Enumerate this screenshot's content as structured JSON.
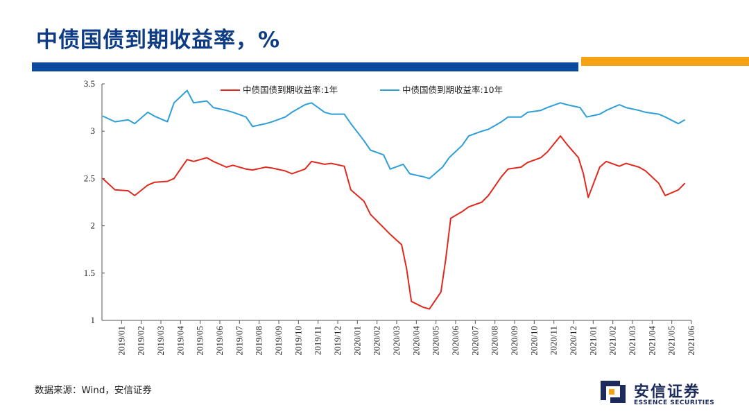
{
  "slide": {
    "title": "中债国债到期收益率，%",
    "source": "数据来源：Wind，安信证券"
  },
  "logo": {
    "cn_name": "安信证券",
    "en_name": "ESSENCE SECURITIES",
    "brand_color": "#1c2a5c",
    "accent_color": "#f5a314"
  },
  "colors": {
    "title": "#0d3c84",
    "bar_blue": "#0c4a9e",
    "bar_orange": "#f5a314"
  },
  "chart_data": {
    "type": "line",
    "ylim": [
      1,
      3.5
    ],
    "yticks": [
      "1",
      "1.5",
      "2",
      "2.5",
      "3",
      "3.5"
    ],
    "x_tick_labels": [
      "2019/01",
      "2019/02",
      "2019/03",
      "2019/04",
      "2019/05",
      "2019/06",
      "2019/07",
      "2019/08",
      "2019/09",
      "2019/10",
      "2019/11",
      "2019/12",
      "2020/01",
      "2020/02",
      "2020/03",
      "2020/04",
      "2020/05",
      "2020/06",
      "2020/07",
      "2020/08",
      "2020/09",
      "2020/10",
      "2020/11",
      "2020/12",
      "2021/01",
      "2021/02",
      "2021/03",
      "2021/04",
      "2021/05",
      "2021/06"
    ],
    "legend_position": "top-center",
    "grid": false,
    "series": [
      {
        "name": "中债国债到期收益率:1年",
        "color": "#e0281e",
        "points": [
          [
            "2019/01",
            2.5
          ],
          [
            "2019/01",
            2.38
          ],
          [
            "2019/02",
            2.37
          ],
          [
            "2019/02",
            2.32
          ],
          [
            "2019/03",
            2.43
          ],
          [
            "2019/03",
            2.46
          ],
          [
            "2019/04",
            2.47
          ],
          [
            "2019/04",
            2.5
          ],
          [
            "2019/05",
            2.7
          ],
          [
            "2019/05",
            2.68
          ],
          [
            "2019/06",
            2.72
          ],
          [
            "2019/06",
            2.68
          ],
          [
            "2019/07",
            2.62
          ],
          [
            "2019/07",
            2.64
          ],
          [
            "2019/08",
            2.6
          ],
          [
            "2019/08",
            2.59
          ],
          [
            "2019/09",
            2.62
          ],
          [
            "2019/09",
            2.61
          ],
          [
            "2019/10",
            2.58
          ],
          [
            "2019/10",
            2.55
          ],
          [
            "2019/11",
            2.6
          ],
          [
            "2019/11",
            2.68
          ],
          [
            "2019/12",
            2.65
          ],
          [
            "2019/12",
            2.66
          ],
          [
            "2020/01",
            2.63
          ],
          [
            "2020/01",
            2.38
          ],
          [
            "2020/02",
            2.26
          ],
          [
            "2020/02",
            2.12
          ],
          [
            "2020/03",
            1.98
          ],
          [
            "2020/03",
            1.91
          ],
          [
            "2020/04",
            1.8
          ],
          [
            "2020/04",
            1.55
          ],
          [
            "2020/04",
            1.2
          ],
          [
            "2020/05",
            1.14
          ],
          [
            "2020/05",
            1.12
          ],
          [
            "2020/06",
            1.3
          ],
          [
            "2020/06",
            1.65
          ],
          [
            "2020/06",
            2.08
          ],
          [
            "2020/07",
            2.15
          ],
          [
            "2020/07",
            2.2
          ],
          [
            "2020/08",
            2.25
          ],
          [
            "2020/08",
            2.32
          ],
          [
            "2020/09",
            2.52
          ],
          [
            "2020/09",
            2.6
          ],
          [
            "2020/10",
            2.62
          ],
          [
            "2020/10",
            2.67
          ],
          [
            "2020/11",
            2.72
          ],
          [
            "2020/11",
            2.78
          ],
          [
            "2020/12",
            2.95
          ],
          [
            "2020/12",
            2.86
          ],
          [
            "2021/01",
            2.72
          ],
          [
            "2021/01",
            2.55
          ],
          [
            "2021/01",
            2.3
          ],
          [
            "2021/02",
            2.62
          ],
          [
            "2021/02",
            2.68
          ],
          [
            "2021/03",
            2.63
          ],
          [
            "2021/03",
            2.66
          ],
          [
            "2021/04",
            2.62
          ],
          [
            "2021/04",
            2.58
          ],
          [
            "2021/05",
            2.45
          ],
          [
            "2021/05",
            2.32
          ],
          [
            "2021/06",
            2.38
          ],
          [
            "2021/06",
            2.45
          ]
        ]
      },
      {
        "name": "中债国债到期收益率:10年",
        "color": "#2d9ed6",
        "points": [
          [
            "2019/01",
            3.16
          ],
          [
            "2019/01",
            3.1
          ],
          [
            "2019/02",
            3.12
          ],
          [
            "2019/02",
            3.08
          ],
          [
            "2019/03",
            3.2
          ],
          [
            "2019/03",
            3.16
          ],
          [
            "2019/04",
            3.1
          ],
          [
            "2019/04",
            3.3
          ],
          [
            "2019/05",
            3.43
          ],
          [
            "2019/05",
            3.3
          ],
          [
            "2019/06",
            3.32
          ],
          [
            "2019/06",
            3.25
          ],
          [
            "2019/07",
            3.22
          ],
          [
            "2019/07",
            3.2
          ],
          [
            "2019/08",
            3.15
          ],
          [
            "2019/08",
            3.05
          ],
          [
            "2019/09",
            3.08
          ],
          [
            "2019/09",
            3.1
          ],
          [
            "2019/10",
            3.15
          ],
          [
            "2019/10",
            3.2
          ],
          [
            "2019/11",
            3.28
          ],
          [
            "2019/11",
            3.3
          ],
          [
            "2019/12",
            3.2
          ],
          [
            "2019/12",
            3.18
          ],
          [
            "2020/01",
            3.18
          ],
          [
            "2020/01",
            3.08
          ],
          [
            "2020/02",
            2.9
          ],
          [
            "2020/02",
            2.8
          ],
          [
            "2020/03",
            2.75
          ],
          [
            "2020/03",
            2.6
          ],
          [
            "2020/04",
            2.65
          ],
          [
            "2020/04",
            2.55
          ],
          [
            "2020/05",
            2.52
          ],
          [
            "2020/05",
            2.5
          ],
          [
            "2020/06",
            2.62
          ],
          [
            "2020/06",
            2.72
          ],
          [
            "2020/07",
            2.85
          ],
          [
            "2020/07",
            2.95
          ],
          [
            "2020/08",
            3.0
          ],
          [
            "2020/08",
            3.02
          ],
          [
            "2020/09",
            3.1
          ],
          [
            "2020/09",
            3.15
          ],
          [
            "2020/10",
            3.15
          ],
          [
            "2020/10",
            3.2
          ],
          [
            "2020/11",
            3.22
          ],
          [
            "2020/11",
            3.25
          ],
          [
            "2020/12",
            3.3
          ],
          [
            "2020/12",
            3.28
          ],
          [
            "2021/01",
            3.25
          ],
          [
            "2021/01",
            3.15
          ],
          [
            "2021/02",
            3.18
          ],
          [
            "2021/02",
            3.22
          ],
          [
            "2021/03",
            3.28
          ],
          [
            "2021/03",
            3.25
          ],
          [
            "2021/04",
            3.22
          ],
          [
            "2021/04",
            3.2
          ],
          [
            "2021/05",
            3.18
          ],
          [
            "2021/05",
            3.15
          ],
          [
            "2021/06",
            3.08
          ],
          [
            "2021/06",
            3.12
          ]
        ]
      }
    ]
  }
}
